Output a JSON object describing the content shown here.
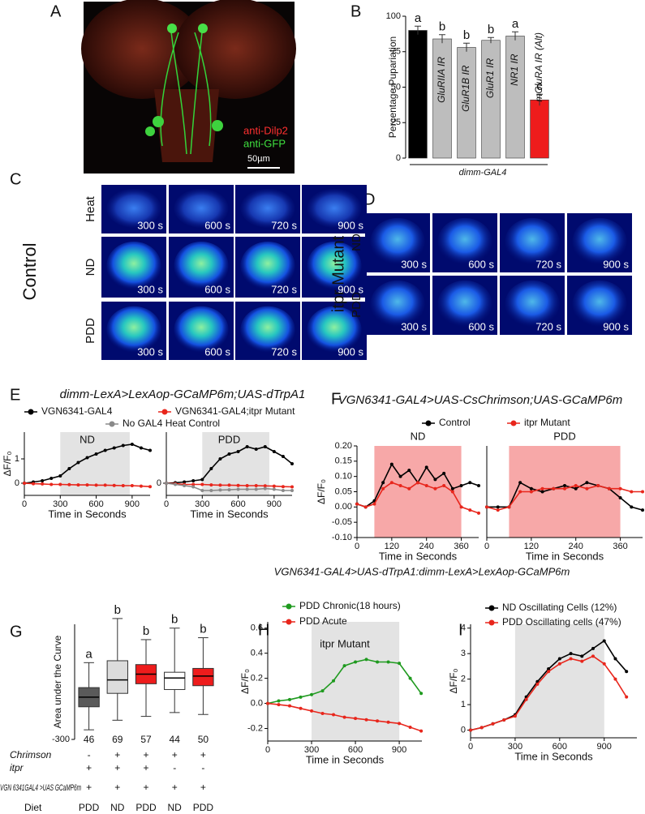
{
  "panel_labels": [
    "A",
    "B",
    "C",
    "D",
    "E",
    "F",
    "G",
    "H",
    "I"
  ],
  "panel_a": {
    "labels": [
      "anti-Dilp2",
      "anti-GFP",
      "50µm"
    ]
  },
  "panel_c": {
    "group": "Control",
    "rows": [
      "Heat",
      "ND",
      "PDD"
    ],
    "times": [
      "300 s",
      "600 s",
      "720 s",
      "900 s"
    ]
  },
  "panel_d": {
    "group": "itpr Mutant",
    "rows": [
      "ND",
      "PDD"
    ],
    "times": [
      "300 s",
      "600 s",
      "720 s",
      "900 s"
    ]
  },
  "headings": {
    "e": "dimm-LexA>LexAop-GCaMP6m;UAS-dTrpA1",
    "f": "VGN6341-GAL4>UAS-CsChrimson;UAS-GCaMP6m",
    "hi": "VGN6341-GAL4>UAS-dTrpA1:dimm-LexA>LexAop-GCaMP6m"
  },
  "panel_g_table": {
    "rows": [
      {
        "label": "Chrimson",
        "cells": [
          "-",
          "+",
          "+",
          "+",
          "+"
        ]
      },
      {
        "label": "itpr",
        "cells": [
          "+",
          "+",
          "+",
          "-",
          "-"
        ]
      },
      {
        "label": "VGN 6341GAL4 >UAS GCaMP6m",
        "cells": [
          "+",
          "+",
          "+",
          "+",
          "+"
        ]
      },
      {
        "label": "Diet",
        "cells": [
          "PDD",
          "ND",
          "PDD",
          "ND",
          "PDD"
        ]
      }
    ]
  },
  "chart_data": [
    {
      "type": "bar",
      "ylabel": "Percentage Pupariation",
      "xlabel": "dimm-GAL4",
      "categories": [
        null,
        "GluRIIA IR",
        "GluR1B IR",
        "GluR1 IR",
        "NR1 IR",
        "mGluRA IR (Alt)"
      ],
      "values": [
        90,
        84,
        78,
        83,
        86,
        41
      ],
      "errors": [
        3,
        3,
        3,
        2,
        3,
        4
      ],
      "letters": [
        "a",
        "b",
        "b",
        "b",
        "a",
        "c"
      ],
      "colors": [
        "#000000",
        "#bdbdbd",
        "#bdbdbd",
        "#bdbdbd",
        "#bdbdbd",
        "#ee1c1c"
      ],
      "ylim": [
        0,
        100
      ],
      "yticks": [
        0,
        25,
        50,
        75,
        100
      ]
    },
    {
      "type": "line",
      "title": "ND",
      "ylabel": "ΔF/F₀",
      "xlabel": "Time in Seconds",
      "x": [
        0,
        75,
        150,
        225,
        300,
        375,
        450,
        525,
        600,
        675,
        750,
        825,
        900,
        975,
        1050
      ],
      "series": [
        {
          "color": "#000000",
          "values": [
            0,
            0.05,
            0.1,
            0.2,
            0.3,
            0.6,
            0.85,
            1.05,
            1.2,
            1.35,
            1.45,
            1.55,
            1.6,
            1.45,
            1.35
          ]
        },
        {
          "color": "#e8261c",
          "values": [
            0,
            -0.02,
            -0.03,
            -0.05,
            -0.05,
            -0.06,
            -0.07,
            -0.07,
            -0.08,
            -0.08,
            -0.09,
            -0.1,
            -0.1,
            -0.12,
            -0.14
          ]
        }
      ],
      "shade": [
        300,
        880
      ],
      "shade_color": "#e3e3e3",
      "xlim": [
        0,
        1050
      ],
      "ylim": [
        -0.5,
        2.1
      ],
      "xticks": [
        0,
        300,
        600,
        900
      ],
      "yticks": [
        0,
        1
      ]
    },
    {
      "type": "line",
      "title": "PDD",
      "xlabel": "Time in Seconds",
      "x": [
        0,
        75,
        150,
        225,
        300,
        375,
        450,
        525,
        600,
        675,
        750,
        825,
        900,
        975,
        1050
      ],
      "series": [
        {
          "name": "VGN6341-GAL4",
          "color": "#000000",
          "values": [
            0,
            0.02,
            0.05,
            0.1,
            0.15,
            0.6,
            1.0,
            1.2,
            1.3,
            1.5,
            1.4,
            1.5,
            1.3,
            1.1,
            0.8
          ]
        },
        {
          "name": "VGN6341-GAL4;itpr Mutant",
          "color": "#e8261c",
          "values": [
            0,
            -0.02,
            -0.05,
            -0.05,
            -0.05,
            -0.07,
            -0.08,
            -0.08,
            -0.09,
            -0.1,
            -0.1,
            -0.11,
            -0.12,
            -0.14,
            -0.15
          ]
        },
        {
          "name": "No GAL4 Heat Control",
          "color": "#8a8a8a",
          "values": [
            0,
            -0.05,
            -0.1,
            -0.15,
            -0.3,
            -0.3,
            -0.28,
            -0.27,
            -0.25,
            -0.25,
            -0.25,
            -0.22,
            -0.25,
            -0.3,
            -0.3
          ]
        }
      ],
      "shade": [
        300,
        860
      ],
      "shade_color": "#e3e3e3",
      "xlim": [
        0,
        1050
      ],
      "ylim": [
        -0.5,
        2.1
      ],
      "xticks": [
        0,
        300,
        600,
        900
      ],
      "yticks": [
        0
      ]
    },
    {
      "type": "line",
      "title": "ND",
      "ylabel": "ΔF/F₀",
      "xlabel": "Time in Seconds",
      "x": [
        0,
        30,
        60,
        90,
        120,
        150,
        180,
        210,
        240,
        270,
        300,
        330,
        360,
        390,
        420
      ],
      "series": [
        {
          "name": "Control",
          "color": "#000000",
          "values": [
            0.01,
            0.0,
            0.02,
            0.08,
            0.14,
            0.1,
            0.12,
            0.08,
            0.13,
            0.09,
            0.11,
            0.06,
            0.07,
            0.08,
            0.07
          ]
        },
        {
          "name": "itpr Mutant",
          "color": "#e8261c",
          "values": [
            0.01,
            0.0,
            0.01,
            0.06,
            0.08,
            0.07,
            0.06,
            0.08,
            0.07,
            0.06,
            0.07,
            0.05,
            0.0,
            -0.01,
            -0.02
          ]
        }
      ],
      "shade": [
        60,
        360
      ],
      "shade_color": "#f7a8a8",
      "xlim": [
        0,
        420
      ],
      "ylim": [
        -0.1,
        0.2
      ],
      "xticks": [
        0,
        120,
        240,
        360
      ],
      "yticks": [
        {
          "value": -0.1,
          "label": "-0.10"
        },
        -0.05,
        {
          "value": 0,
          "label": "0.00"
        },
        0.05,
        {
          "value": 0.1,
          "label": "0.10"
        },
        0.15,
        {
          "value": 0.2,
          "label": "0.20"
        }
      ]
    },
    {
      "type": "line",
      "title": "PDD",
      "xlabel": "Time in Seconds",
      "x": [
        0,
        30,
        60,
        90,
        120,
        150,
        180,
        210,
        240,
        270,
        300,
        330,
        360,
        390,
        420
      ],
      "series": [
        {
          "color": "#000000",
          "values": [
            0.0,
            0.0,
            0.0,
            0.08,
            0.06,
            0.05,
            0.06,
            0.07,
            0.06,
            0.08,
            0.07,
            0.06,
            0.03,
            0.0,
            -0.01
          ]
        },
        {
          "color": "#e8261c",
          "values": [
            0.0,
            -0.01,
            0.0,
            0.05,
            0.05,
            0.06,
            0.06,
            0.06,
            0.07,
            0.06,
            0.07,
            0.06,
            0.06,
            0.05,
            0.05
          ]
        }
      ],
      "shade": [
        60,
        360
      ],
      "shade_color": "#f7a8a8",
      "xlim": [
        0,
        420
      ],
      "ylim": [
        -0.1,
        0.2
      ],
      "xticks": [
        0,
        120,
        240,
        360
      ],
      "yticks": []
    },
    {
      "type": "box",
      "ylabel": "Area under the Curve",
      "boxes": [
        {
          "whislo": -250,
          "q1": -130,
          "median": -80,
          "q3": -30,
          "whishi": 100
        },
        {
          "whislo": -200,
          "q1": -60,
          "median": 10,
          "q3": 110,
          "whishi": 330
        },
        {
          "whislo": -180,
          "q1": -10,
          "median": 40,
          "q3": 90,
          "whishi": 220
        },
        {
          "whislo": -160,
          "q1": -40,
          "median": 20,
          "q3": 50,
          "whishi": 280
        },
        {
          "whislo": -170,
          "q1": -20,
          "median": 30,
          "q3": 70,
          "whishi": 230
        }
      ],
      "colors": [
        "#5a5a5a",
        "#dcdcdc",
        "#ee1c1c",
        "#ffffff",
        "#ee1c1c"
      ],
      "letters": [
        "a",
        "b",
        "b",
        "b",
        "b"
      ],
      "n": [
        46,
        69,
        57,
        44,
        50
      ],
      "ylim": [
        -300,
        300
      ],
      "yticks": [
        -300
      ]
    },
    {
      "type": "line",
      "title": "itpr Mutant",
      "ylabel": "ΔF/F₀",
      "xlabel": "Time in Seconds",
      "x": [
        0,
        75,
        150,
        225,
        300,
        375,
        450,
        525,
        600,
        675,
        750,
        825,
        900,
        975,
        1050
      ],
      "series": [
        {
          "name": "PDD Chronic(18 hours)",
          "color": "#1f9a1f",
          "values": [
            0,
            0.02,
            0.03,
            0.05,
            0.07,
            0.1,
            0.18,
            0.3,
            0.33,
            0.35,
            0.33,
            0.33,
            0.32,
            0.2,
            0.08
          ]
        },
        {
          "name": "PDD Acute",
          "color": "#e8261c",
          "values": [
            0,
            -0.01,
            -0.02,
            -0.04,
            -0.06,
            -0.08,
            -0.09,
            -0.11,
            -0.12,
            -0.13,
            -0.14,
            -0.15,
            -0.16,
            -0.19,
            -0.22
          ]
        }
      ],
      "shade": [
        300,
        900
      ],
      "shade_color": "#e3e3e3",
      "xlim": [
        0,
        1055
      ],
      "ylim": [
        -0.3,
        0.65
      ],
      "xticks": [
        0,
        300,
        600,
        900
      ],
      "yticks": [
        -0.2,
        {
          "value": 0,
          "label": "0.0"
        },
        0.2,
        0.4,
        0.6
      ]
    },
    {
      "type": "line",
      "ylabel": "ΔF/F₀",
      "xlabel": "Time in Seconds",
      "x": [
        0,
        75,
        150,
        225,
        300,
        375,
        450,
        525,
        600,
        675,
        750,
        825,
        900,
        975,
        1050
      ],
      "series": [
        {
          "name": "ND Oscillating Cells (12%)",
          "color": "#000000",
          "values": [
            0,
            0.1,
            0.25,
            0.4,
            0.6,
            1.3,
            1.9,
            2.4,
            2.8,
            3.0,
            2.9,
            3.2,
            3.5,
            2.8,
            2.3
          ]
        },
        {
          "name": "PDD Oscillating cells (47%)",
          "color": "#e8261c",
          "values": [
            0,
            0.1,
            0.25,
            0.4,
            0.55,
            1.2,
            1.8,
            2.3,
            2.6,
            2.8,
            2.7,
            2.9,
            2.6,
            2.0,
            1.3
          ]
        }
      ],
      "shade": [
        300,
        900
      ],
      "shade_color": "#e3e3e3",
      "xlim": [
        0,
        1120
      ],
      "ylim": [
        -0.3,
        4.15
      ],
      "xticks": [
        0,
        300,
        600,
        900
      ],
      "yticks": [
        0,
        1,
        2,
        3,
        4
      ]
    }
  ]
}
